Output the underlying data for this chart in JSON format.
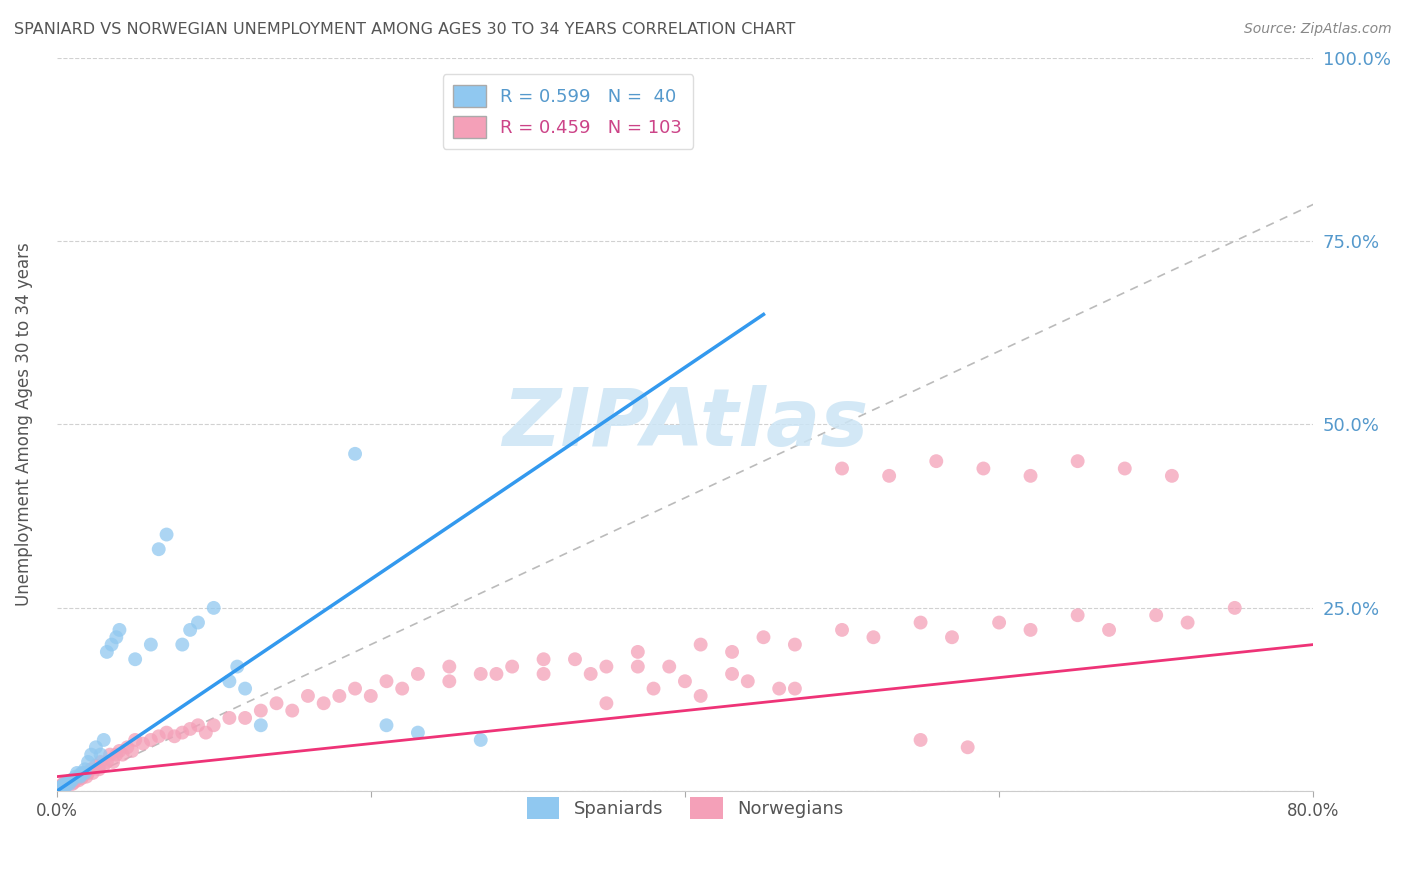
{
  "title": "SPANIARD VS NORWEGIAN UNEMPLOYMENT AMONG AGES 30 TO 34 YEARS CORRELATION CHART",
  "source": "Source: ZipAtlas.com",
  "ylabel": "Unemployment Among Ages 30 to 34 years",
  "watermark": "ZIPAtlas",
  "xlim": [
    0.0,
    0.8
  ],
  "ylim": [
    0.0,
    1.0
  ],
  "spaniards_color": "#90c8f0",
  "norwegians_color": "#f4a0b8",
  "regression_blue_color": "#3399ee",
  "regression_pink_color": "#ee3377",
  "reference_line_color": "#bbbbbb",
  "background_color": "#ffffff",
  "grid_color": "#cccccc",
  "title_color": "#555555",
  "right_axis_color": "#5599cc",
  "blue_line_x": [
    0.0,
    0.45
  ],
  "blue_line_y": [
    0.0,
    0.65
  ],
  "pink_line_x": [
    0.0,
    0.8
  ],
  "pink_line_y": [
    0.02,
    0.2
  ],
  "spaniards_x": [
    0.002,
    0.004,
    0.005,
    0.006,
    0.007,
    0.008,
    0.009,
    0.01,
    0.012,
    0.013,
    0.015,
    0.015,
    0.016,
    0.018,
    0.018,
    0.02,
    0.022,
    0.025,
    0.028,
    0.03,
    0.032,
    0.035,
    0.038,
    0.04,
    0.05,
    0.06,
    0.065,
    0.07,
    0.08,
    0.085,
    0.09,
    0.1,
    0.11,
    0.115,
    0.12,
    0.13,
    0.19,
    0.21,
    0.23,
    0.27
  ],
  "spaniards_y": [
    0.005,
    0.008,
    0.01,
    0.008,
    0.012,
    0.01,
    0.015,
    0.015,
    0.02,
    0.025,
    0.022,
    0.02,
    0.025,
    0.03,
    0.025,
    0.04,
    0.05,
    0.06,
    0.05,
    0.07,
    0.19,
    0.2,
    0.21,
    0.22,
    0.18,
    0.2,
    0.33,
    0.35,
    0.2,
    0.22,
    0.23,
    0.25,
    0.15,
    0.17,
    0.14,
    0.09,
    0.46,
    0.09,
    0.08,
    0.07
  ],
  "norwegians_x": [
    0.002,
    0.003,
    0.004,
    0.005,
    0.006,
    0.007,
    0.008,
    0.009,
    0.01,
    0.011,
    0.012,
    0.013,
    0.014,
    0.015,
    0.016,
    0.017,
    0.018,
    0.019,
    0.02,
    0.022,
    0.023,
    0.025,
    0.027,
    0.028,
    0.03,
    0.032,
    0.034,
    0.036,
    0.038,
    0.04,
    0.042,
    0.045,
    0.048,
    0.05,
    0.055,
    0.06,
    0.065,
    0.07,
    0.075,
    0.08,
    0.085,
    0.09,
    0.095,
    0.1,
    0.11,
    0.12,
    0.13,
    0.14,
    0.15,
    0.16,
    0.17,
    0.18,
    0.19,
    0.2,
    0.21,
    0.22,
    0.23,
    0.25,
    0.27,
    0.29,
    0.31,
    0.33,
    0.35,
    0.37,
    0.39,
    0.41,
    0.43,
    0.45,
    0.47,
    0.5,
    0.52,
    0.55,
    0.57,
    0.6,
    0.62,
    0.65,
    0.67,
    0.7,
    0.72,
    0.75,
    0.5,
    0.53,
    0.56,
    0.59,
    0.62,
    0.65,
    0.68,
    0.71,
    0.35,
    0.38,
    0.41,
    0.44,
    0.47,
    0.55,
    0.58,
    0.25,
    0.28,
    0.31,
    0.34,
    0.37,
    0.4,
    0.43,
    0.46
  ],
  "norwegians_y": [
    0.005,
    0.008,
    0.01,
    0.012,
    0.008,
    0.01,
    0.012,
    0.015,
    0.01,
    0.012,
    0.015,
    0.018,
    0.015,
    0.02,
    0.018,
    0.022,
    0.025,
    0.02,
    0.025,
    0.03,
    0.025,
    0.035,
    0.03,
    0.04,
    0.035,
    0.04,
    0.05,
    0.04,
    0.05,
    0.055,
    0.05,
    0.06,
    0.055,
    0.07,
    0.065,
    0.07,
    0.075,
    0.08,
    0.075,
    0.08,
    0.085,
    0.09,
    0.08,
    0.09,
    0.1,
    0.1,
    0.11,
    0.12,
    0.11,
    0.13,
    0.12,
    0.13,
    0.14,
    0.13,
    0.15,
    0.14,
    0.16,
    0.15,
    0.16,
    0.17,
    0.16,
    0.18,
    0.17,
    0.19,
    0.17,
    0.2,
    0.19,
    0.21,
    0.2,
    0.22,
    0.21,
    0.23,
    0.21,
    0.23,
    0.22,
    0.24,
    0.22,
    0.24,
    0.23,
    0.25,
    0.44,
    0.43,
    0.45,
    0.44,
    0.43,
    0.45,
    0.44,
    0.43,
    0.12,
    0.14,
    0.13,
    0.15,
    0.14,
    0.07,
    0.06,
    0.17,
    0.16,
    0.18,
    0.16,
    0.17,
    0.15,
    0.16,
    0.14
  ]
}
